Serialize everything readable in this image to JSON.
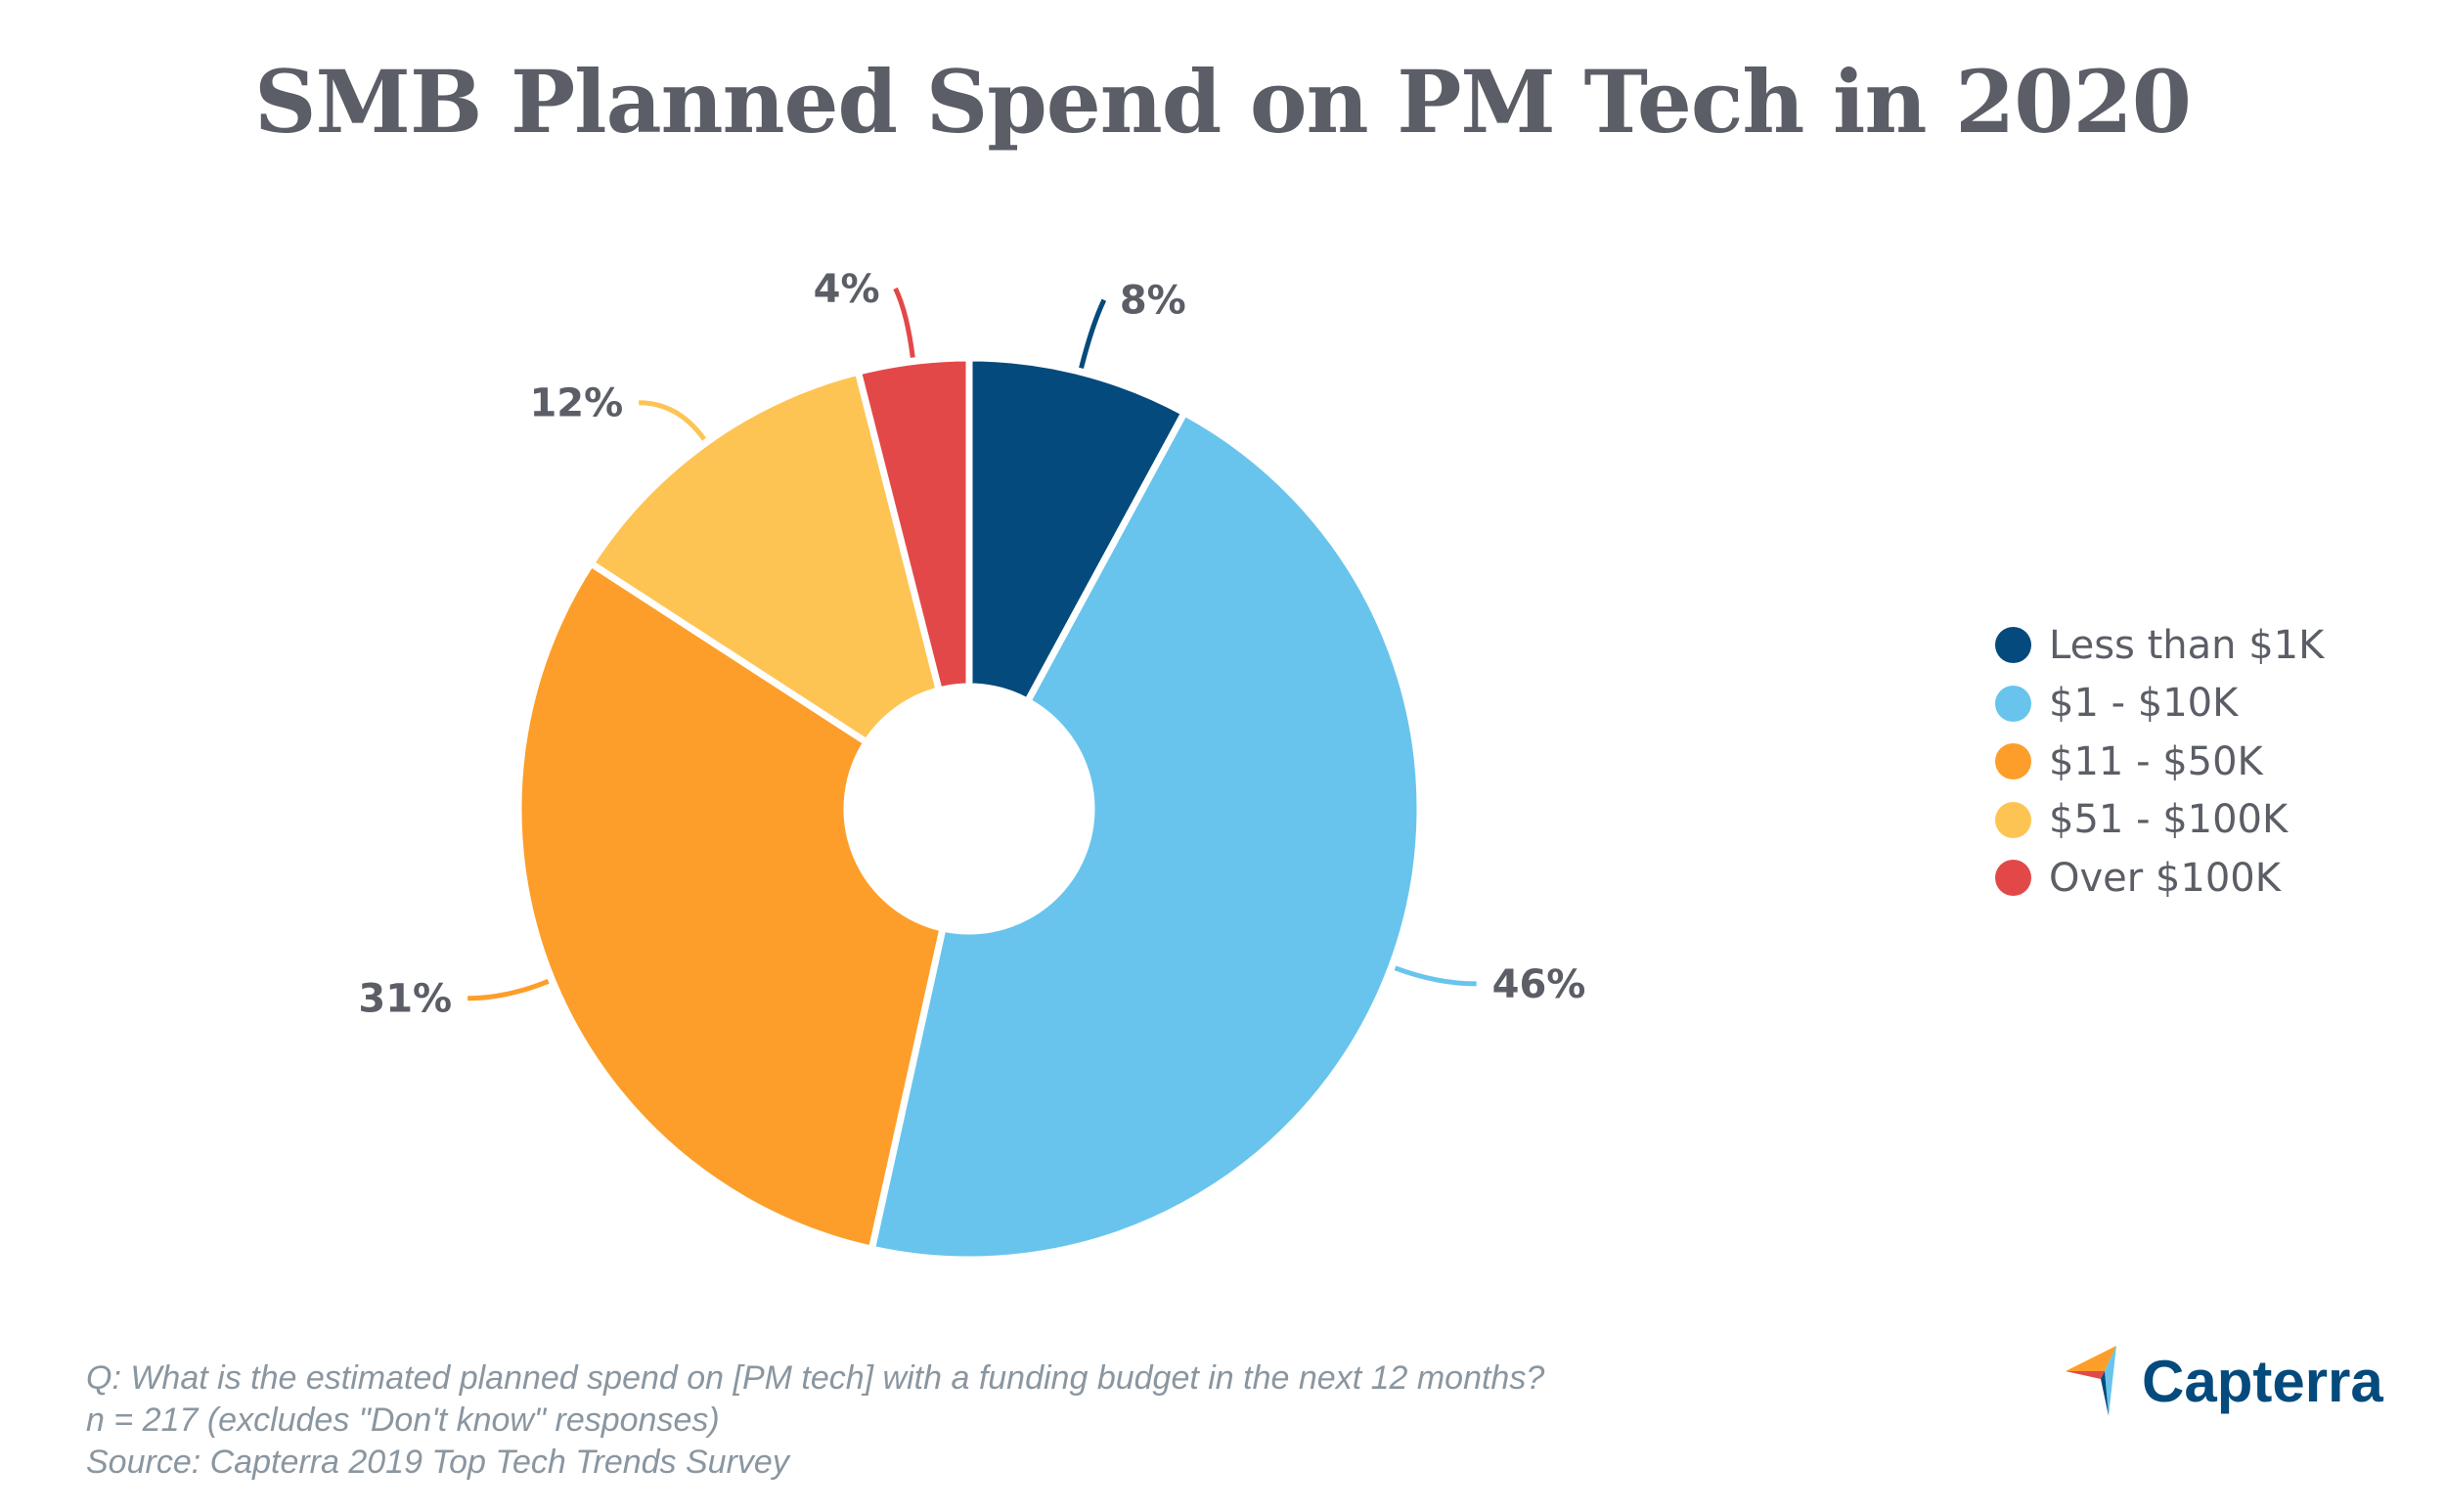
{
  "chart_data": {
    "type": "pie",
    "style": "donut",
    "title": "SMB Planned Spend on PM Tech in 2020",
    "categories": [
      "Less than $1K",
      "$1 - $10K",
      "$11 - $50K",
      "$51 - $100K",
      "Over $100K"
    ],
    "values": [
      8,
      46,
      31,
      12,
      4
    ],
    "labels": [
      "8%",
      "46%",
      "31%",
      "12%",
      "4%"
    ],
    "colors": [
      "#054a7c",
      "#68c4ec",
      "#fd9e2a",
      "#fec453",
      "#e34848"
    ],
    "legend_position": "right",
    "start": "top, clockwise"
  },
  "footnotes": [
    "Q: What is the estimated planned spend on [PM tech] with a funding budget in the next 12 months?",
    "n = 217 (excludes \"Don't know\" responses)",
    "Source: Capterra 2019 Top Tech Trends Survey"
  ],
  "logo": {
    "text": "Capterra",
    "icon": "capterra-arrow-icon"
  }
}
